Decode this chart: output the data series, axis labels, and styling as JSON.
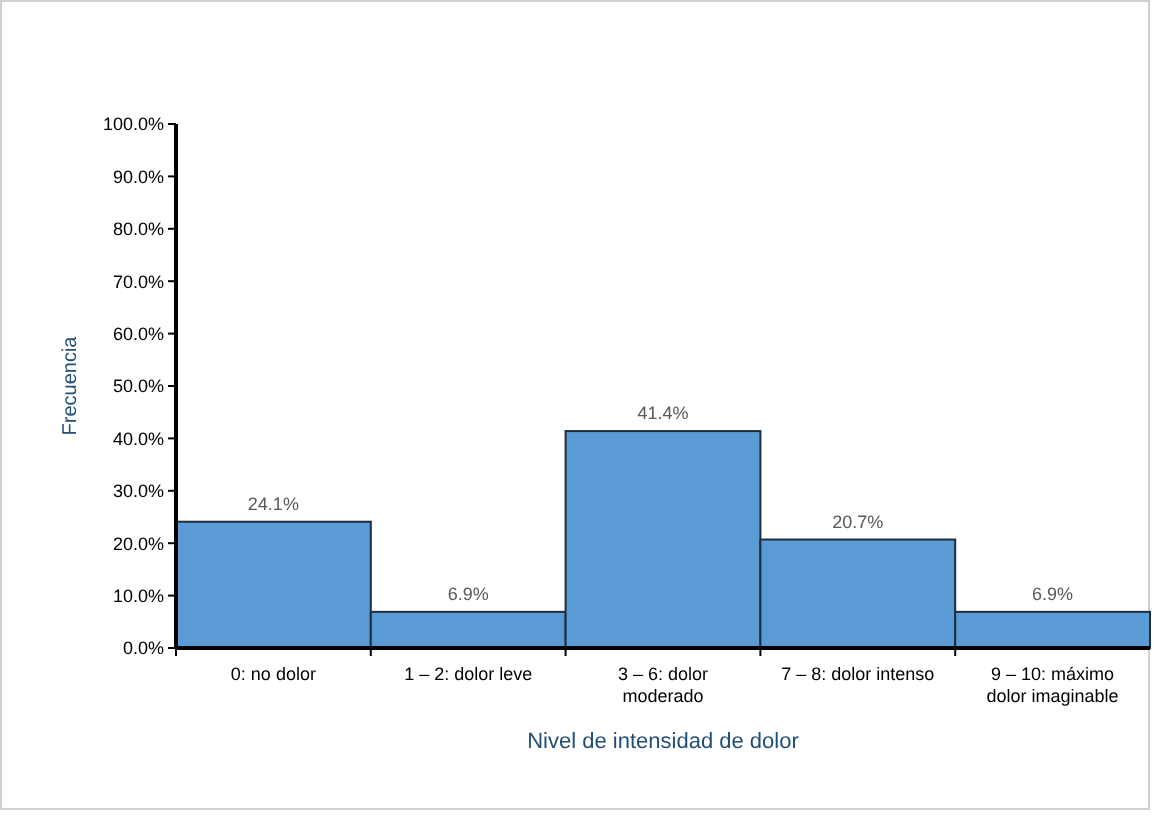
{
  "chart_data": {
    "type": "bar",
    "xlabel": "Nivel de intensidad de dolor",
    "ylabel": "Frecuencia",
    "categories": [
      "0: no dolor",
      "1 – 2: dolor leve",
      "3 – 6: dolor moderado",
      "7 – 8: dolor intenso",
      "9 – 10: máximo dolor imaginable"
    ],
    "values": [
      24.1,
      6.9,
      41.4,
      20.7,
      6.9
    ],
    "color": "#5b9bd5",
    "value_labels": [
      "24.1%",
      "6.9%",
      "41.4%",
      "20.7%",
      "6.9%"
    ],
    "ylim": [
      0,
      100
    ],
    "yticks": [
      {
        "value": 0,
        "label": "0.0%"
      },
      {
        "value": 10,
        "label": "10.0%"
      },
      {
        "value": 20,
        "label": "20.0%"
      },
      {
        "value": 30,
        "label": "30.0%"
      },
      {
        "value": 40,
        "label": "40.0%"
      },
      {
        "value": 50,
        "label": "50.0%"
      },
      {
        "value": 60,
        "label": "60.0%"
      },
      {
        "value": 70,
        "label": "70.0%"
      },
      {
        "value": 80,
        "label": "80.0%"
      },
      {
        "value": 90,
        "label": "90.0%"
      },
      {
        "value": 100,
        "label": "100.0%"
      }
    ],
    "grid": false
  }
}
